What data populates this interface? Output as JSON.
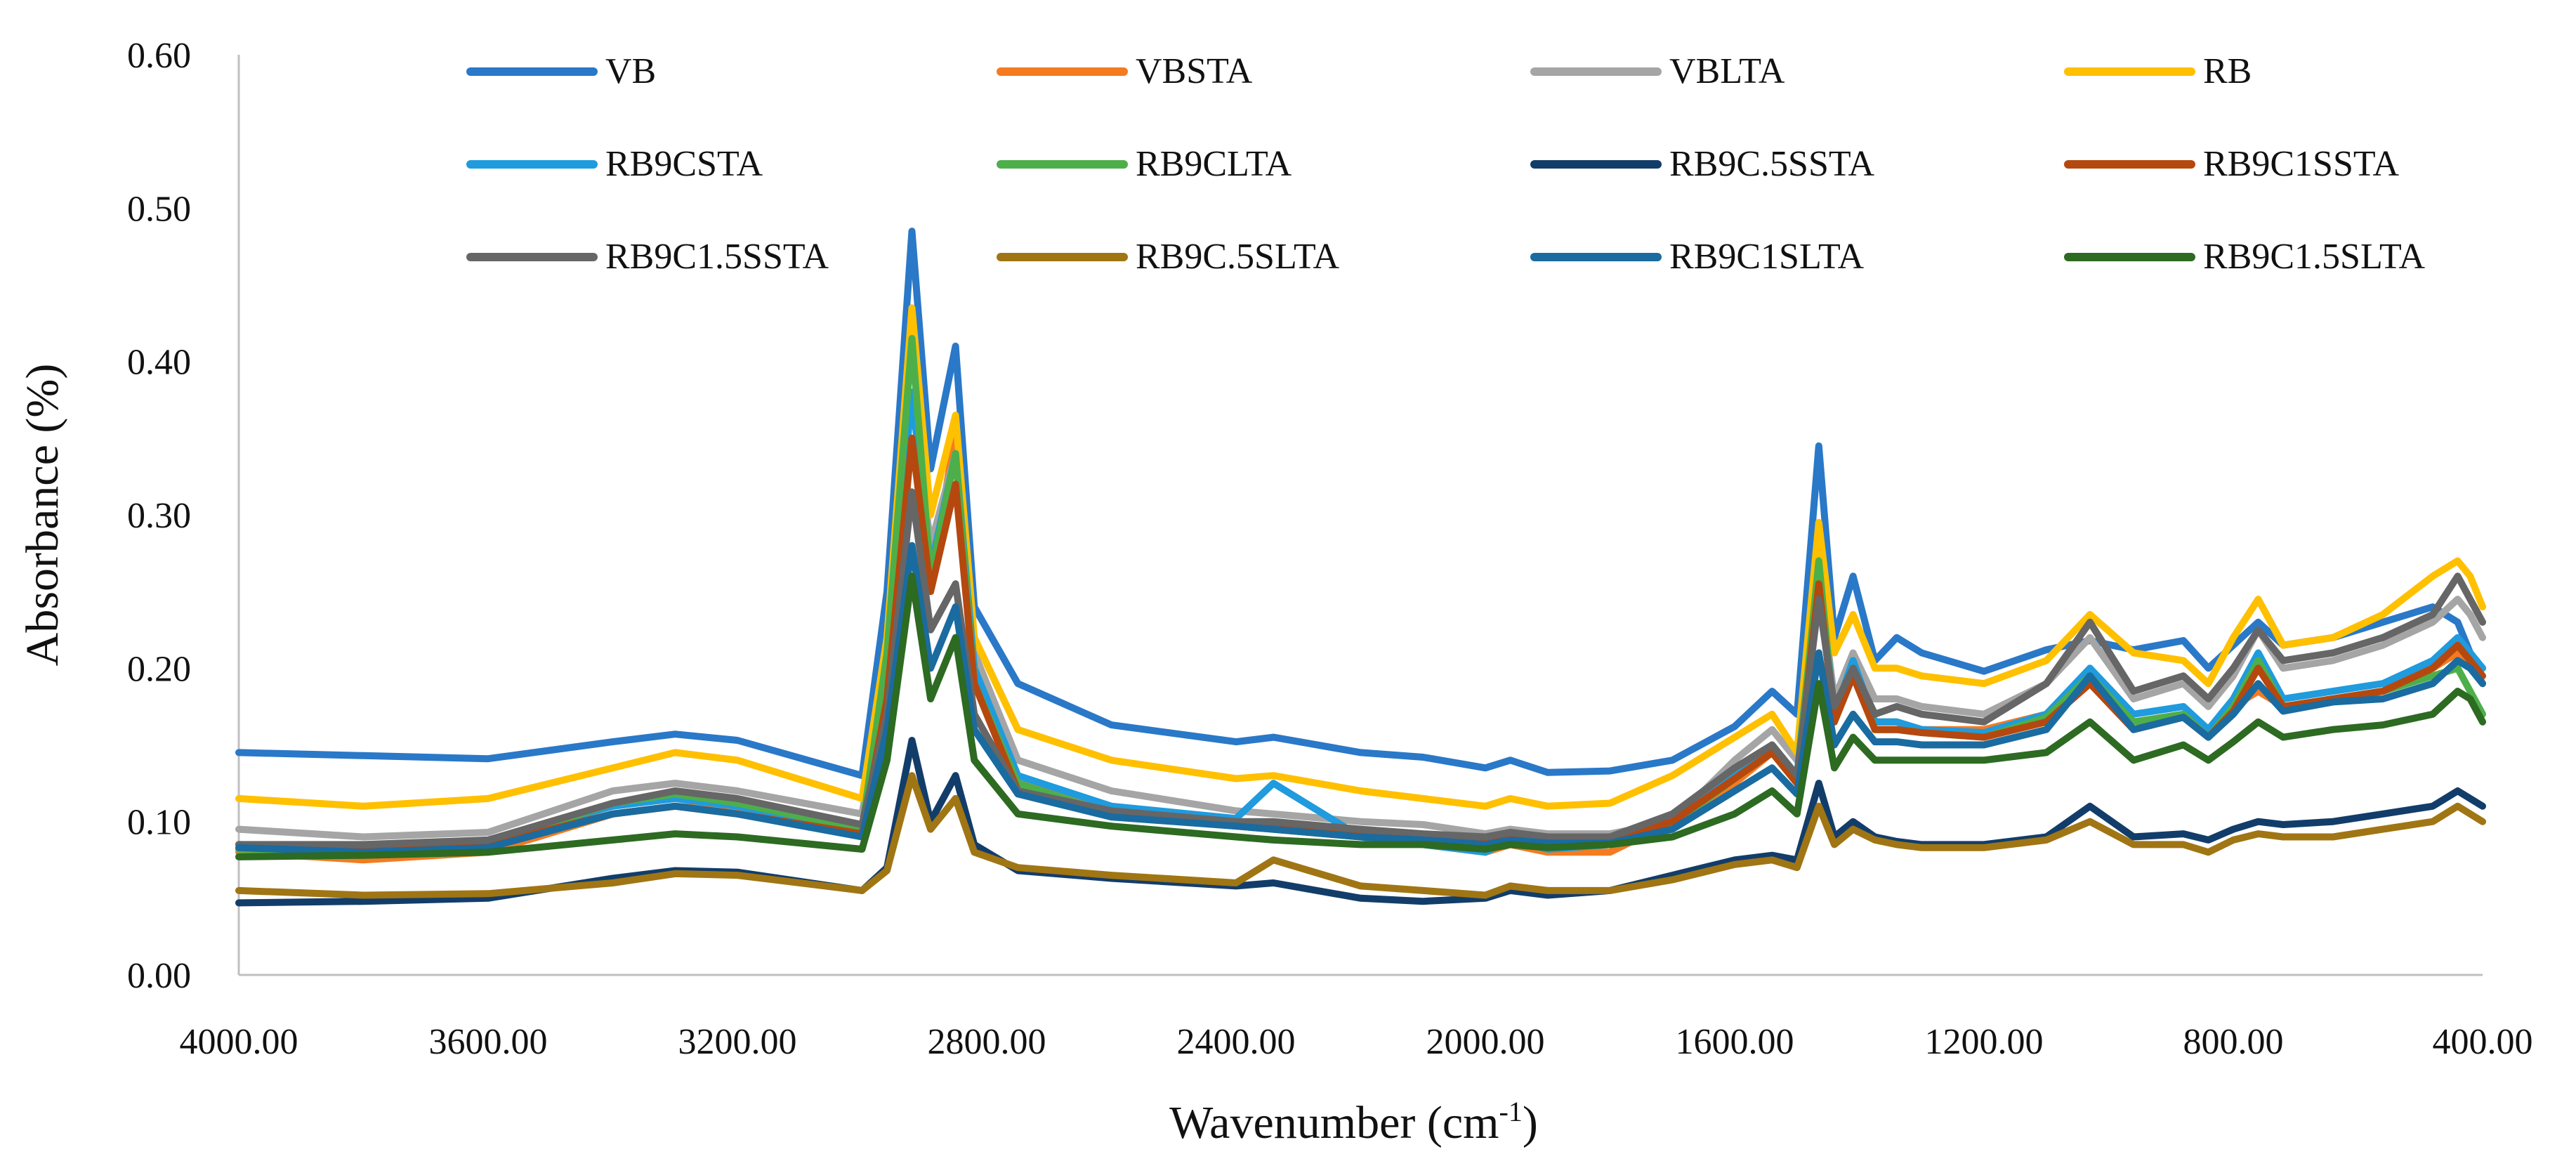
{
  "chart_data": {
    "type": "line",
    "title": "",
    "xlabel": "Wavenumber (cm",
    "xlabel_sup": "-1",
    "xlabel_end": ")",
    "ylabel": "Absorbance (%)",
    "xlim": [
      4000,
      400
    ],
    "ylim": [
      0,
      0.6
    ],
    "x_reversed": true,
    "grid": false,
    "legend_position": "top",
    "x_ticks": [
      4000,
      3600,
      3200,
      2800,
      2400,
      2000,
      1600,
      1200,
      800,
      400
    ],
    "x_tick_labels": [
      "4000.00",
      "3600.00",
      "3200.00",
      "2800.00",
      "2400.00",
      "2000.00",
      "1600.00",
      "1200.00",
      "800.00",
      "400.00"
    ],
    "y_ticks": [
      0,
      0.1,
      0.2,
      0.3,
      0.4,
      0.5,
      0.6
    ],
    "y_tick_labels": [
      "0.00",
      "0.10",
      "0.20",
      "0.30",
      "0.40",
      "0.50",
      "0.60"
    ],
    "x": [
      4000,
      3800,
      3600,
      3400,
      3300,
      3200,
      3000,
      2960,
      2920,
      2890,
      2850,
      2820,
      2750,
      2600,
      2400,
      2340,
      2200,
      2100,
      2000,
      1960,
      1900,
      1800,
      1700,
      1600,
      1540,
      1500,
      1465,
      1440,
      1410,
      1375,
      1340,
      1300,
      1200,
      1100,
      1030,
      960,
      880,
      840,
      800,
      760,
      720,
      640,
      560,
      480,
      440,
      420,
      400
    ],
    "series": [
      {
        "name": "VB",
        "color": "#2a78c8",
        "values": [
          0.145,
          0.143,
          0.141,
          0.152,
          0.157,
          0.153,
          0.13,
          0.25,
          0.485,
          0.33,
          0.41,
          0.24,
          0.19,
          0.163,
          0.152,
          0.155,
          0.145,
          0.142,
          0.135,
          0.14,
          0.132,
          0.133,
          0.14,
          0.162,
          0.185,
          0.17,
          0.345,
          0.22,
          0.26,
          0.205,
          0.22,
          0.21,
          0.198,
          0.212,
          0.218,
          0.212,
          0.218,
          0.2,
          0.215,
          0.23,
          0.215,
          0.22,
          0.23,
          0.24,
          0.23,
          0.21,
          0.2
        ]
      },
      {
        "name": "VBSTA",
        "color": "#f47b20",
        "values": [
          0.08,
          0.075,
          0.08,
          0.105,
          0.11,
          0.107,
          0.09,
          0.2,
          0.42,
          0.255,
          0.355,
          0.19,
          0.125,
          0.11,
          0.1,
          0.095,
          0.09,
          0.085,
          0.08,
          0.085,
          0.08,
          0.08,
          0.1,
          0.125,
          0.145,
          0.125,
          0.28,
          0.17,
          0.2,
          0.165,
          0.165,
          0.16,
          0.16,
          0.17,
          0.195,
          0.165,
          0.17,
          0.16,
          0.175,
          0.185,
          0.175,
          0.18,
          0.185,
          0.2,
          0.21,
          0.205,
          0.19
        ]
      },
      {
        "name": "VBLTA",
        "color": "#a5a5a5",
        "values": [
          0.095,
          0.09,
          0.093,
          0.12,
          0.125,
          0.12,
          0.105,
          0.2,
          0.38,
          0.28,
          0.34,
          0.21,
          0.14,
          0.12,
          0.107,
          0.105,
          0.1,
          0.098,
          0.092,
          0.095,
          0.092,
          0.092,
          0.1,
          0.14,
          0.16,
          0.14,
          0.26,
          0.18,
          0.21,
          0.18,
          0.18,
          0.175,
          0.17,
          0.19,
          0.22,
          0.18,
          0.19,
          0.175,
          0.195,
          0.225,
          0.2,
          0.205,
          0.215,
          0.23,
          0.245,
          0.235,
          0.22
        ]
      },
      {
        "name": "RB",
        "color": "#ffc000",
        "values": [
          0.115,
          0.11,
          0.115,
          0.135,
          0.145,
          0.14,
          0.115,
          0.22,
          0.435,
          0.3,
          0.365,
          0.22,
          0.16,
          0.14,
          0.128,
          0.13,
          0.12,
          0.115,
          0.11,
          0.115,
          0.11,
          0.112,
          0.13,
          0.155,
          0.17,
          0.145,
          0.295,
          0.21,
          0.235,
          0.2,
          0.2,
          0.195,
          0.19,
          0.205,
          0.235,
          0.21,
          0.205,
          0.19,
          0.22,
          0.245,
          0.215,
          0.22,
          0.235,
          0.26,
          0.27,
          0.26,
          0.24
        ]
      },
      {
        "name": "RB9CSTA",
        "color": "#1f9bde",
        "values": [
          0.085,
          0.083,
          0.088,
          0.11,
          0.115,
          0.11,
          0.092,
          0.2,
          0.38,
          0.265,
          0.34,
          0.2,
          0.13,
          0.11,
          0.102,
          0.125,
          0.09,
          0.085,
          0.08,
          0.088,
          0.082,
          0.085,
          0.1,
          0.13,
          0.15,
          0.13,
          0.265,
          0.17,
          0.205,
          0.165,
          0.165,
          0.16,
          0.158,
          0.17,
          0.2,
          0.17,
          0.175,
          0.16,
          0.18,
          0.21,
          0.18,
          0.185,
          0.19,
          0.205,
          0.22,
          0.21,
          0.2
        ]
      },
      {
        "name": "RB9CLTA",
        "color": "#4daf4a",
        "values": [
          0.082,
          0.08,
          0.085,
          0.112,
          0.118,
          0.112,
          0.095,
          0.21,
          0.415,
          0.26,
          0.34,
          0.19,
          0.125,
          0.105,
          0.097,
          0.095,
          0.09,
          0.088,
          0.085,
          0.09,
          0.085,
          0.085,
          0.098,
          0.128,
          0.145,
          0.125,
          0.27,
          0.165,
          0.2,
          0.16,
          0.16,
          0.158,
          0.155,
          0.168,
          0.195,
          0.165,
          0.17,
          0.155,
          0.175,
          0.205,
          0.175,
          0.18,
          0.185,
          0.195,
          0.2,
          0.185,
          0.17
        ]
      },
      {
        "name": "RB9C.5SSTA",
        "color": "#123d6a",
        "values": [
          0.047,
          0.048,
          0.05,
          0.063,
          0.068,
          0.067,
          0.055,
          0.07,
          0.153,
          0.1,
          0.13,
          0.085,
          0.068,
          0.063,
          0.058,
          0.06,
          0.05,
          0.048,
          0.05,
          0.055,
          0.052,
          0.055,
          0.065,
          0.075,
          0.078,
          0.075,
          0.125,
          0.09,
          0.1,
          0.09,
          0.087,
          0.085,
          0.085,
          0.09,
          0.11,
          0.09,
          0.092,
          0.088,
          0.095,
          0.1,
          0.098,
          0.1,
          0.105,
          0.11,
          0.12,
          0.115,
          0.11
        ]
      },
      {
        "name": "RB9C1SSTA",
        "color": "#b5480f",
        "values": [
          0.085,
          0.082,
          0.085,
          0.105,
          0.11,
          0.105,
          0.092,
          0.18,
          0.35,
          0.25,
          0.32,
          0.19,
          0.12,
          0.105,
          0.1,
          0.098,
          0.092,
          0.09,
          0.088,
          0.09,
          0.088,
          0.088,
          0.1,
          0.128,
          0.145,
          0.125,
          0.255,
          0.165,
          0.195,
          0.16,
          0.16,
          0.158,
          0.155,
          0.165,
          0.19,
          0.16,
          0.168,
          0.155,
          0.172,
          0.2,
          0.175,
          0.18,
          0.185,
          0.2,
          0.215,
          0.205,
          0.195
        ]
      },
      {
        "name": "RB9C1.5SSTA",
        "color": "#666666",
        "values": [
          0.085,
          0.085,
          0.088,
          0.112,
          0.12,
          0.115,
          0.098,
          0.17,
          0.315,
          0.225,
          0.255,
          0.17,
          0.12,
          0.107,
          0.1,
          0.1,
          0.095,
          0.092,
          0.09,
          0.093,
          0.09,
          0.09,
          0.105,
          0.135,
          0.15,
          0.13,
          0.245,
          0.175,
          0.2,
          0.17,
          0.175,
          0.17,
          0.165,
          0.19,
          0.23,
          0.185,
          0.195,
          0.18,
          0.2,
          0.225,
          0.205,
          0.21,
          0.22,
          0.235,
          0.26,
          0.245,
          0.23
        ]
      },
      {
        "name": "RB9C.5SLTA",
        "color": "#a07514",
        "values": [
          0.055,
          0.052,
          0.053,
          0.06,
          0.066,
          0.065,
          0.055,
          0.068,
          0.13,
          0.095,
          0.115,
          0.08,
          0.07,
          0.065,
          0.06,
          0.075,
          0.058,
          0.055,
          0.052,
          0.058,
          0.055,
          0.055,
          0.062,
          0.072,
          0.075,
          0.07,
          0.11,
          0.085,
          0.095,
          0.088,
          0.085,
          0.083,
          0.083,
          0.088,
          0.1,
          0.085,
          0.085,
          0.08,
          0.088,
          0.092,
          0.09,
          0.09,
          0.095,
          0.1,
          0.11,
          0.105,
          0.1
        ]
      },
      {
        "name": "RB9C1SLTA",
        "color": "#1a6ba0",
        "values": [
          0.083,
          0.08,
          0.083,
          0.105,
          0.11,
          0.105,
          0.09,
          0.16,
          0.28,
          0.2,
          0.24,
          0.16,
          0.118,
          0.103,
          0.097,
          0.095,
          0.09,
          0.088,
          0.085,
          0.088,
          0.086,
          0.086,
          0.095,
          0.12,
          0.135,
          0.118,
          0.21,
          0.15,
          0.17,
          0.152,
          0.152,
          0.15,
          0.15,
          0.16,
          0.195,
          0.16,
          0.168,
          0.155,
          0.17,
          0.19,
          0.172,
          0.178,
          0.18,
          0.19,
          0.205,
          0.2,
          0.19
        ]
      },
      {
        "name": "RB9C1.5SLTA",
        "color": "#2d6a22",
        "values": [
          0.077,
          0.078,
          0.08,
          0.088,
          0.092,
          0.09,
          0.082,
          0.14,
          0.26,
          0.18,
          0.22,
          0.14,
          0.105,
          0.097,
          0.09,
          0.088,
          0.085,
          0.085,
          0.082,
          0.085,
          0.083,
          0.085,
          0.09,
          0.105,
          0.12,
          0.105,
          0.19,
          0.135,
          0.155,
          0.14,
          0.14,
          0.14,
          0.14,
          0.145,
          0.165,
          0.14,
          0.15,
          0.14,
          0.152,
          0.165,
          0.155,
          0.16,
          0.163,
          0.17,
          0.185,
          0.18,
          0.165
        ]
      }
    ]
  }
}
